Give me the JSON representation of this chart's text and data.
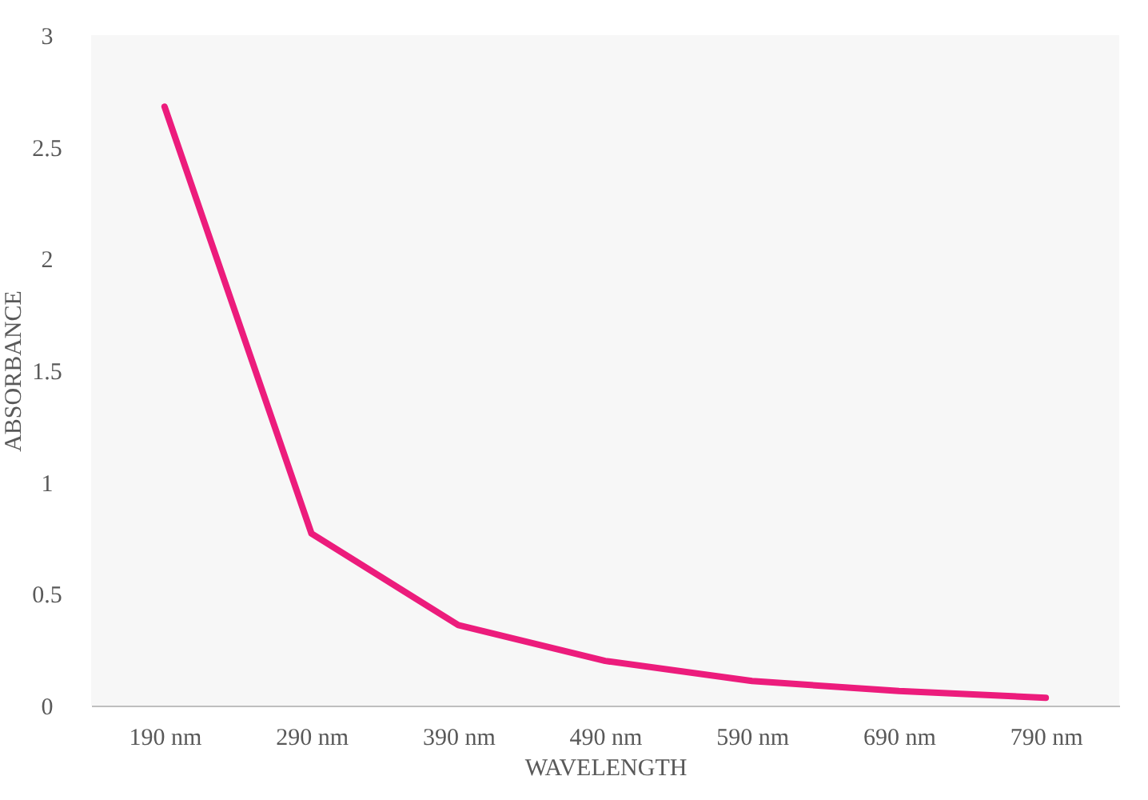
{
  "chart_data": {
    "type": "line",
    "xlabel": "WAVELENGTH",
    "ylabel": "ABSORBANCE",
    "categories": [
      "190 nm",
      "290 nm",
      "390 nm",
      "490 nm",
      "590 nm",
      "690 nm",
      "790 nm"
    ],
    "series": [
      {
        "color": "#ec1c7c",
        "values": [
          2.68,
          0.77,
          0.36,
          0.2,
          0.11,
          0.065,
          0.035
        ]
      }
    ],
    "ylim": [
      0,
      3
    ],
    "yticks": [
      0,
      0.5,
      1,
      1.5,
      2,
      2.5,
      3
    ],
    "grid": false,
    "legend": false,
    "marker": "none",
    "line_style": "solid"
  }
}
